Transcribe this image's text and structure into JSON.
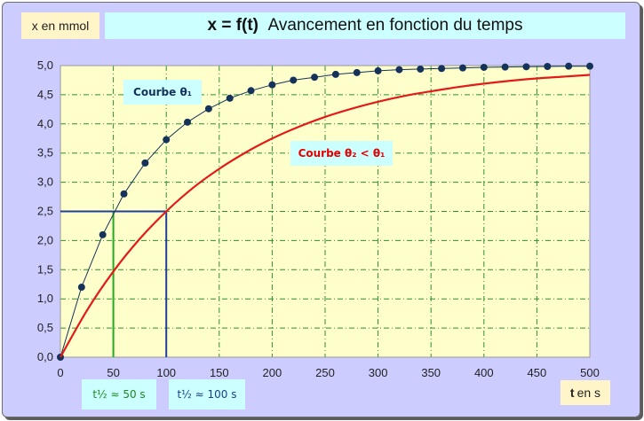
{
  "title_eq": "x = f(t)",
  "title_text": "Avancement en fonction du temps",
  "y_unit_label": "x en mmol",
  "x_unit_var": "t",
  "x_unit_text": "en s",
  "half_time_1": "t½ ≈ 50 s",
  "half_time_2": "t½ ≈ 100 s",
  "curve1_label": "Courbe θ₁",
  "curve2_label": "Courbe θ₂ < θ₁",
  "colors": {
    "plot_bg": "#ffffcc",
    "grid": "#2f8f2f",
    "curve1": "#15325a",
    "curve2": "#e31a1a",
    "guide1": "#22aa22",
    "guide2": "#1f3f99"
  },
  "chart_data": {
    "type": "line",
    "xlim": [
      0,
      500
    ],
    "ylim": [
      0,
      5
    ],
    "x_ticks": [
      0,
      50,
      100,
      150,
      200,
      250,
      300,
      350,
      400,
      450,
      500
    ],
    "y_ticks": [
      0,
      0.5,
      1,
      1.5,
      2,
      2.5,
      3,
      3.5,
      4,
      4.5,
      5
    ],
    "y_tick_labels": [
      "0,0",
      "0,5",
      "1,0",
      "1,5",
      "2,0",
      "2,5",
      "3,0",
      "3,5",
      "4,0",
      "4,5",
      "5,0"
    ],
    "grid": true,
    "series": [
      {
        "name": "Courbe θ₁",
        "markers": true,
        "x": [
          0,
          20,
          40,
          60,
          80,
          100,
          120,
          140,
          160,
          180,
          200,
          220,
          240,
          260,
          280,
          300,
          320,
          340,
          360,
          380,
          400,
          420,
          440,
          460,
          480,
          500
        ],
        "y": [
          0,
          1.2,
          2.1,
          2.8,
          3.33,
          3.73,
          4.03,
          4.26,
          4.44,
          4.57,
          4.67,
          4.75,
          4.8,
          4.85,
          4.88,
          4.91,
          4.93,
          4.94,
          4.95,
          4.96,
          4.97,
          4.975,
          4.98,
          4.985,
          4.99,
          4.99
        ]
      },
      {
        "name": "Courbe θ₂ < θ₁",
        "markers": false,
        "x": [
          0,
          25,
          50,
          75,
          100,
          125,
          150,
          175,
          200,
          225,
          250,
          275,
          300,
          325,
          350,
          375,
          400,
          425,
          450,
          475,
          500
        ],
        "y": [
          0,
          0.8,
          1.47,
          2.03,
          2.5,
          2.9,
          3.23,
          3.51,
          3.75,
          3.95,
          4.12,
          4.26,
          4.38,
          4.48,
          4.56,
          4.63,
          4.69,
          4.74,
          4.78,
          4.81,
          4.84
        ]
      }
    ],
    "guides": [
      {
        "name": "half-time-1",
        "x": 50,
        "y": 2.5
      },
      {
        "name": "half-time-2",
        "x": 100,
        "y": 2.5
      }
    ]
  }
}
